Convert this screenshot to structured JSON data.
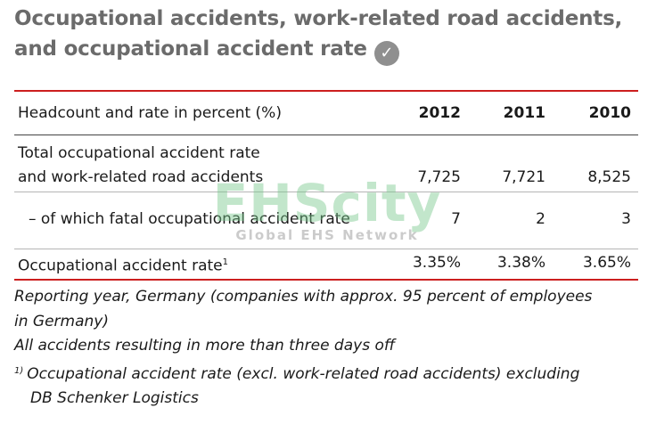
{
  "title": {
    "line1": "Occupational accidents, work-related road accidents,",
    "line2": "and occupational accident rate",
    "check_icon": "check-circle-icon"
  },
  "table": {
    "header": {
      "label": "Headcount and rate in percent (%)",
      "years": [
        "2012",
        "2011",
        "2010"
      ]
    },
    "rows": [
      {
        "label_line1": "Total occupational accident rate",
        "label_line2": "and work-related road accidents",
        "values": [
          "7,725",
          "7,721",
          "8,525"
        ]
      },
      {
        "label": "– of which fatal occupational accident rate",
        "values": [
          "7",
          "2",
          "3"
        ]
      },
      {
        "label": "Occupational accident rate",
        "label_sup": "1",
        "values": [
          "3.35%",
          "3.38%",
          "3.65%"
        ]
      }
    ]
  },
  "notes": {
    "reporting_line1": "Reporting year, Germany (companies with approx. 95 percent of employees",
    "reporting_line2": "in Germany)",
    "accidents_line": "All accidents resulting in more than three days off",
    "footnote_marker": "1)",
    "footnote_line1": "Occupational accident rate (excl. work-related road accidents) excluding",
    "footnote_line2": "DB Schenker Logistics"
  },
  "watermark": {
    "main": "EHScity",
    "sub": "Global EHS Network"
  },
  "colors": {
    "title": "#6b6b6b",
    "rule_red": "#cc1f1f",
    "watermark_green": "#78c88c"
  }
}
